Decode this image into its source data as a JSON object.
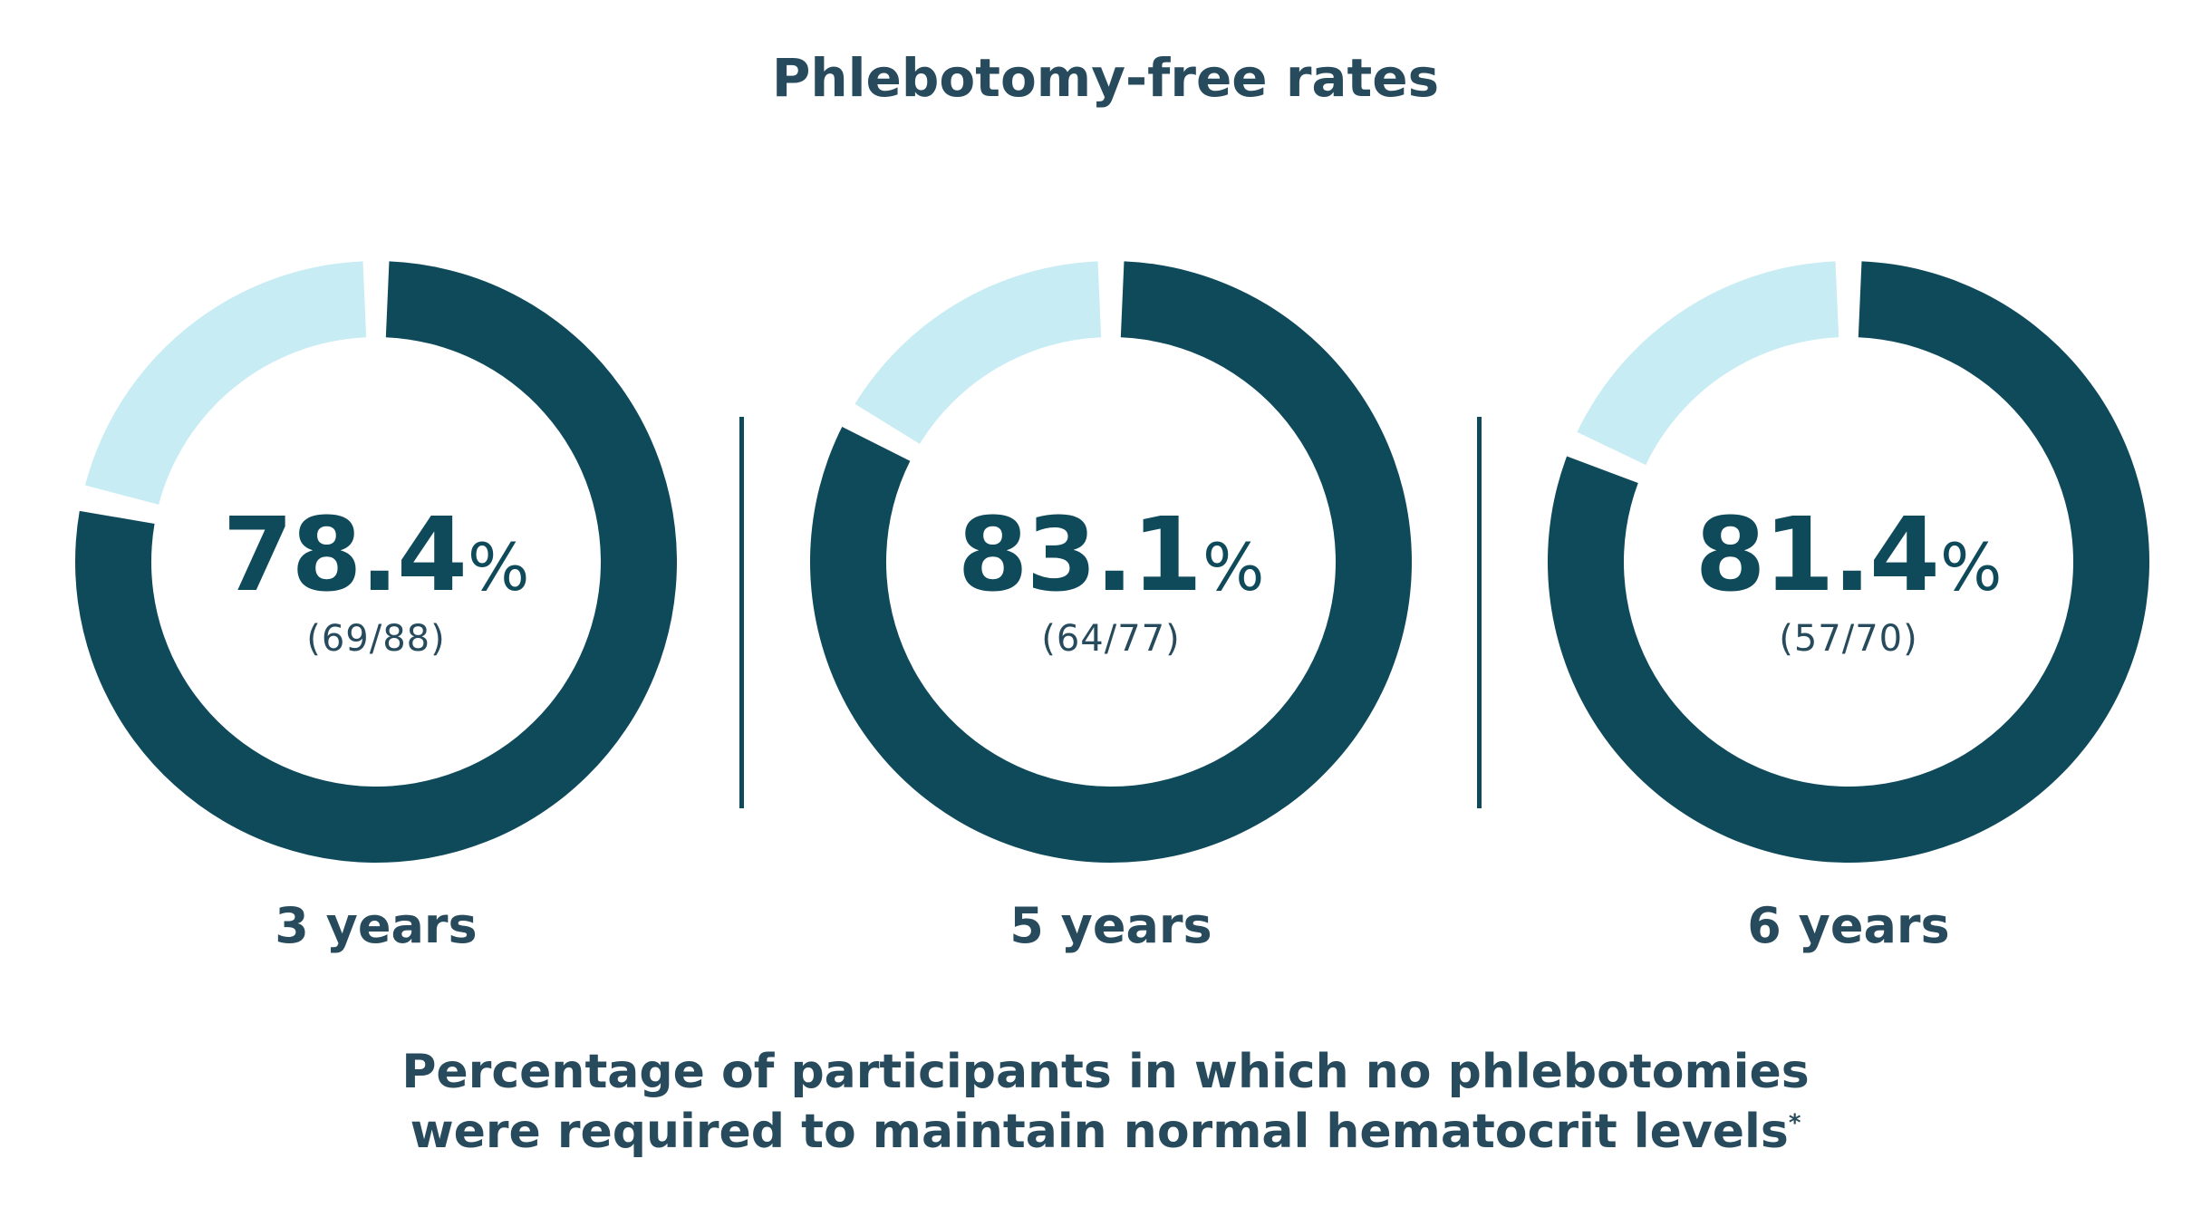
{
  "title": "Phlebotomy-free rates",
  "caption": {
    "line1": "Percentage of participants in which no phlebotomies",
    "line2": "were required to maintain normal hematocrit levels",
    "footnote_mark": "*"
  },
  "colors": {
    "filled": "#0f4a5b",
    "remaining": "#c8ecf3",
    "text": "#274b5c"
  },
  "chart_data": [
    {
      "type": "pie",
      "category": "3 years",
      "value": 78.4,
      "value_label": "78.4",
      "unit": "%",
      "fraction_label": "(69/88)",
      "numerator": 69,
      "denominator": 88
    },
    {
      "type": "pie",
      "category": "5 years",
      "value": 83.1,
      "value_label": "83.1",
      "unit": "%",
      "fraction_label": "(64/77)",
      "numerator": 64,
      "denominator": 77
    },
    {
      "type": "pie",
      "category": "6 years",
      "value": 81.4,
      "value_label": "81.4",
      "unit": "%",
      "fraction_label": "(57/70)",
      "numerator": 57,
      "denominator": 70
    }
  ]
}
